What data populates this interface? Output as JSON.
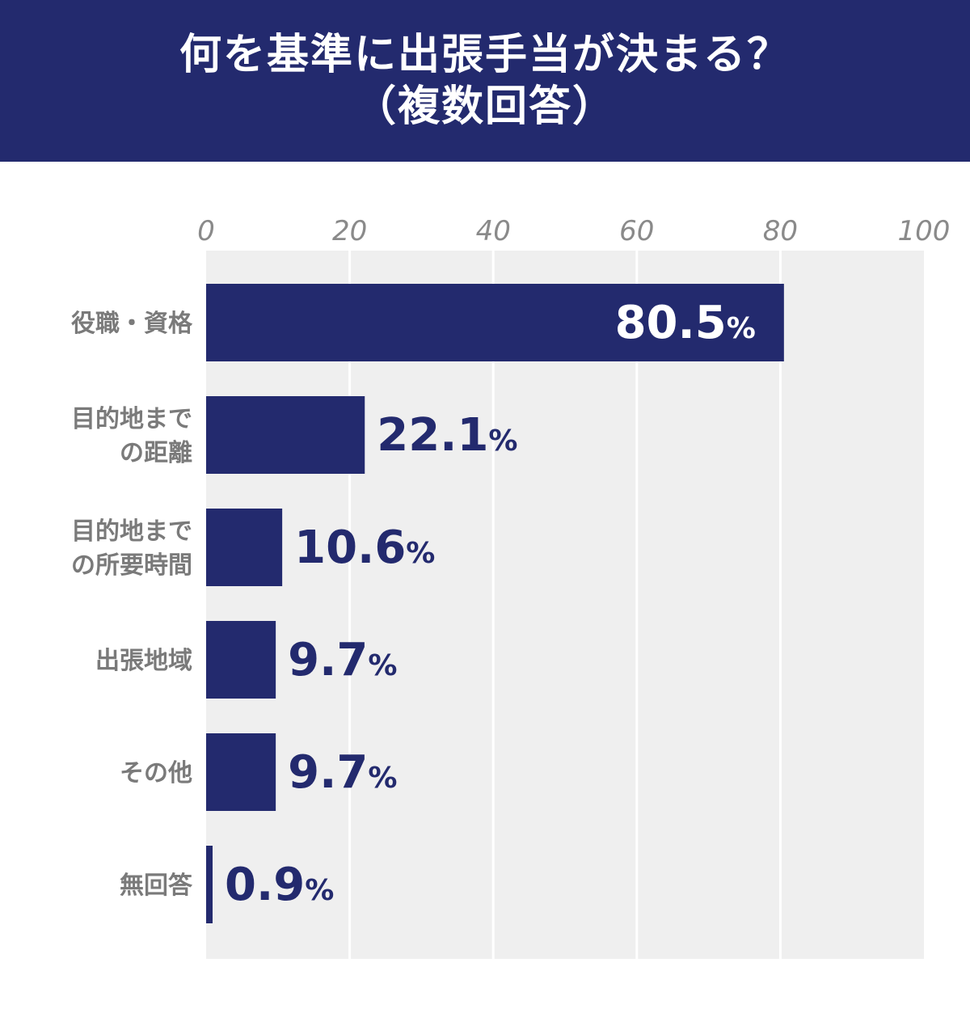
{
  "header": {
    "title_line1": "何を基準に出張手当が決まる？",
    "title_line2": "（複数回答）"
  },
  "colors": {
    "header_bg": "#232a6e",
    "bar": "#232a6e",
    "plot_bg": "#efefef",
    "grid": "#ffffff",
    "tick_text": "#8a8a8a",
    "category_text": "#7a7a7a"
  },
  "chart_data": {
    "type": "bar",
    "orientation": "horizontal",
    "title": "何を基準に出張手当が決まる？（複数回答）",
    "categories": [
      [
        "役職・資格"
      ],
      [
        "目的地まで",
        "の距離"
      ],
      [
        "目的地まで",
        "の所要時間"
      ],
      [
        "出張地域"
      ],
      [
        "その他"
      ],
      [
        "無回答"
      ]
    ],
    "values": [
      80.5,
      22.1,
      10.6,
      9.7,
      9.7,
      0.9
    ],
    "value_labels": [
      "80.5",
      "22.1",
      "10.6",
      "9.7",
      "9.7",
      "0.9"
    ],
    "unit": "%",
    "xlim": [
      0,
      100
    ],
    "ticks": [
      0,
      20,
      40,
      60,
      80,
      100
    ],
    "grid": true,
    "legend": "none"
  }
}
